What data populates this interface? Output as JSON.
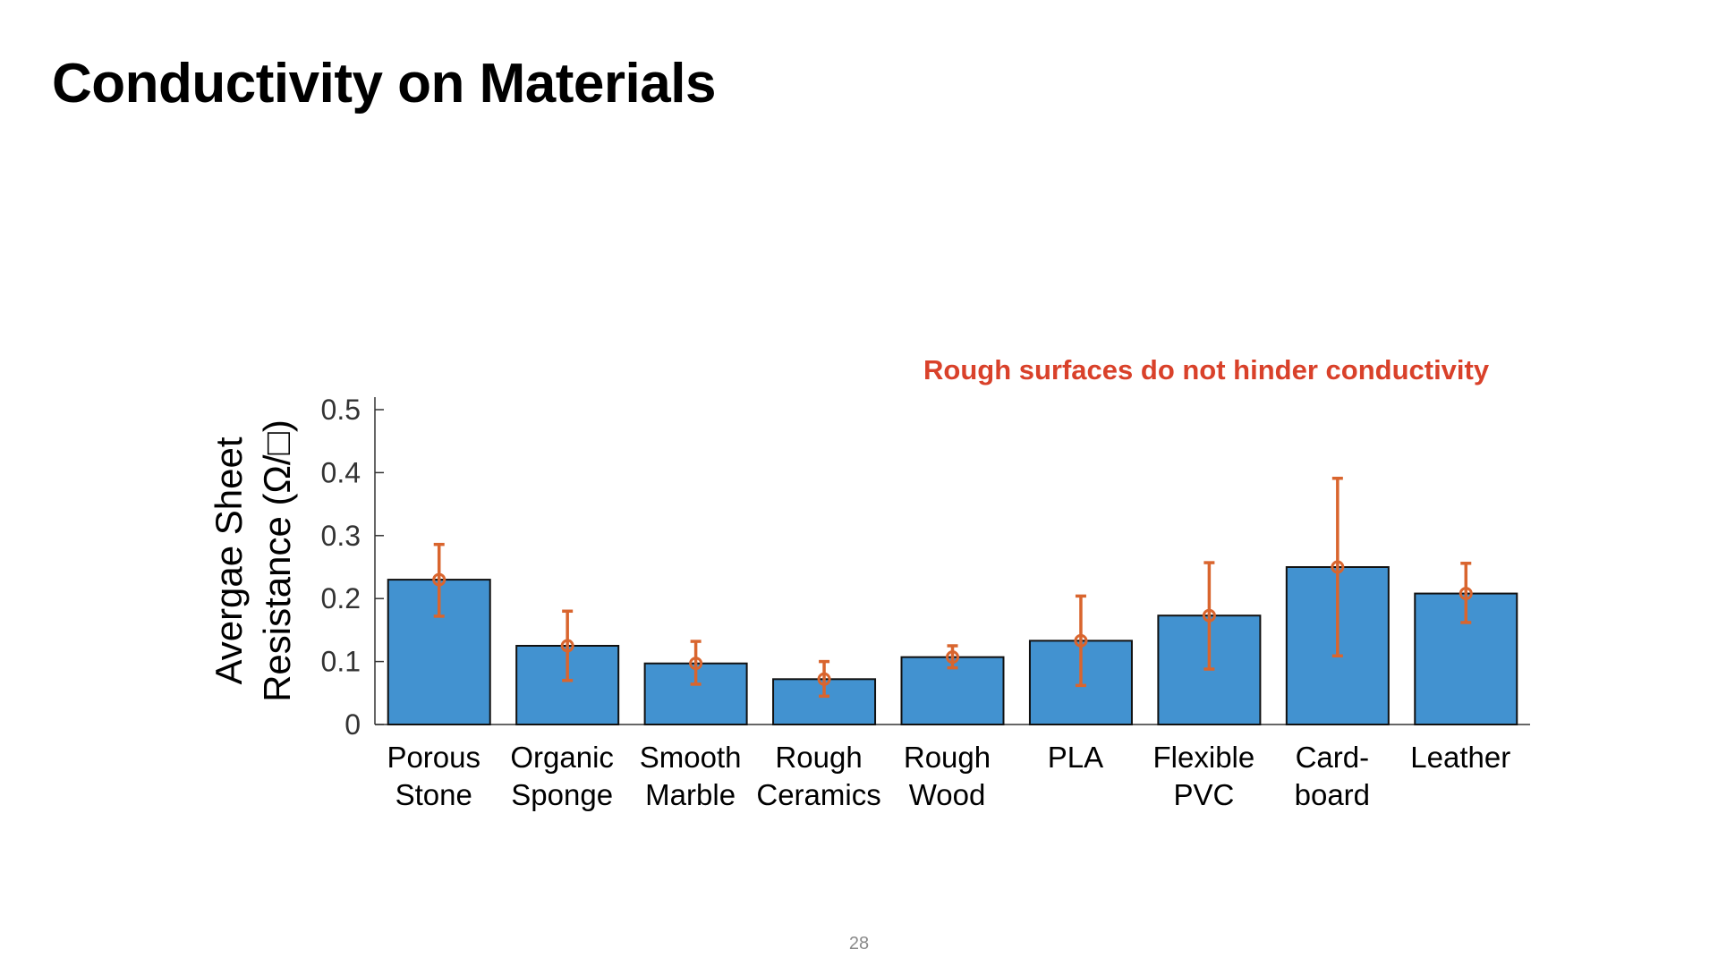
{
  "slide": {
    "title": "Conductivity on Materials",
    "annotation": "Rough surfaces do not hinder conductivity",
    "page_number": "28"
  },
  "colors": {
    "bar_fill": "#4292d0",
    "bar_stroke": "#111111",
    "error_bar": "#d9652e",
    "annotation": "#d9412a"
  },
  "chart_data": {
    "type": "bar",
    "title": "",
    "ylabel_lines": [
      "Avergae Sheet",
      "Resistance (Ω/□)"
    ],
    "xlabel": "",
    "ylim": [
      0,
      0.5
    ],
    "yticks": [
      0,
      0.1,
      0.2,
      0.3,
      0.4,
      0.5
    ],
    "ytick_labels": [
      "0",
      "0.1",
      "0.2",
      "0.3",
      "0.4",
      "0.5"
    ],
    "categories": [
      [
        "Porous",
        "Stone"
      ],
      [
        "Organic",
        "Sponge"
      ],
      [
        "Smooth",
        "Marble"
      ],
      [
        "Rough",
        "Ceramics"
      ],
      [
        "Rough",
        "Wood"
      ],
      [
        "PLA"
      ],
      [
        "Flexible",
        "PVC"
      ],
      [
        "Card-",
        "board"
      ],
      [
        "Leather"
      ]
    ],
    "values": [
      0.23,
      0.125,
      0.097,
      0.072,
      0.107,
      0.133,
      0.173,
      0.25,
      0.208
    ],
    "error_low": [
      0.172,
      0.07,
      0.064,
      0.045,
      0.09,
      0.062,
      0.088,
      0.109,
      0.162
    ],
    "error_high": [
      0.286,
      0.18,
      0.132,
      0.1,
      0.125,
      0.204,
      0.257,
      0.391,
      0.256
    ],
    "grid": false,
    "legend": false
  }
}
